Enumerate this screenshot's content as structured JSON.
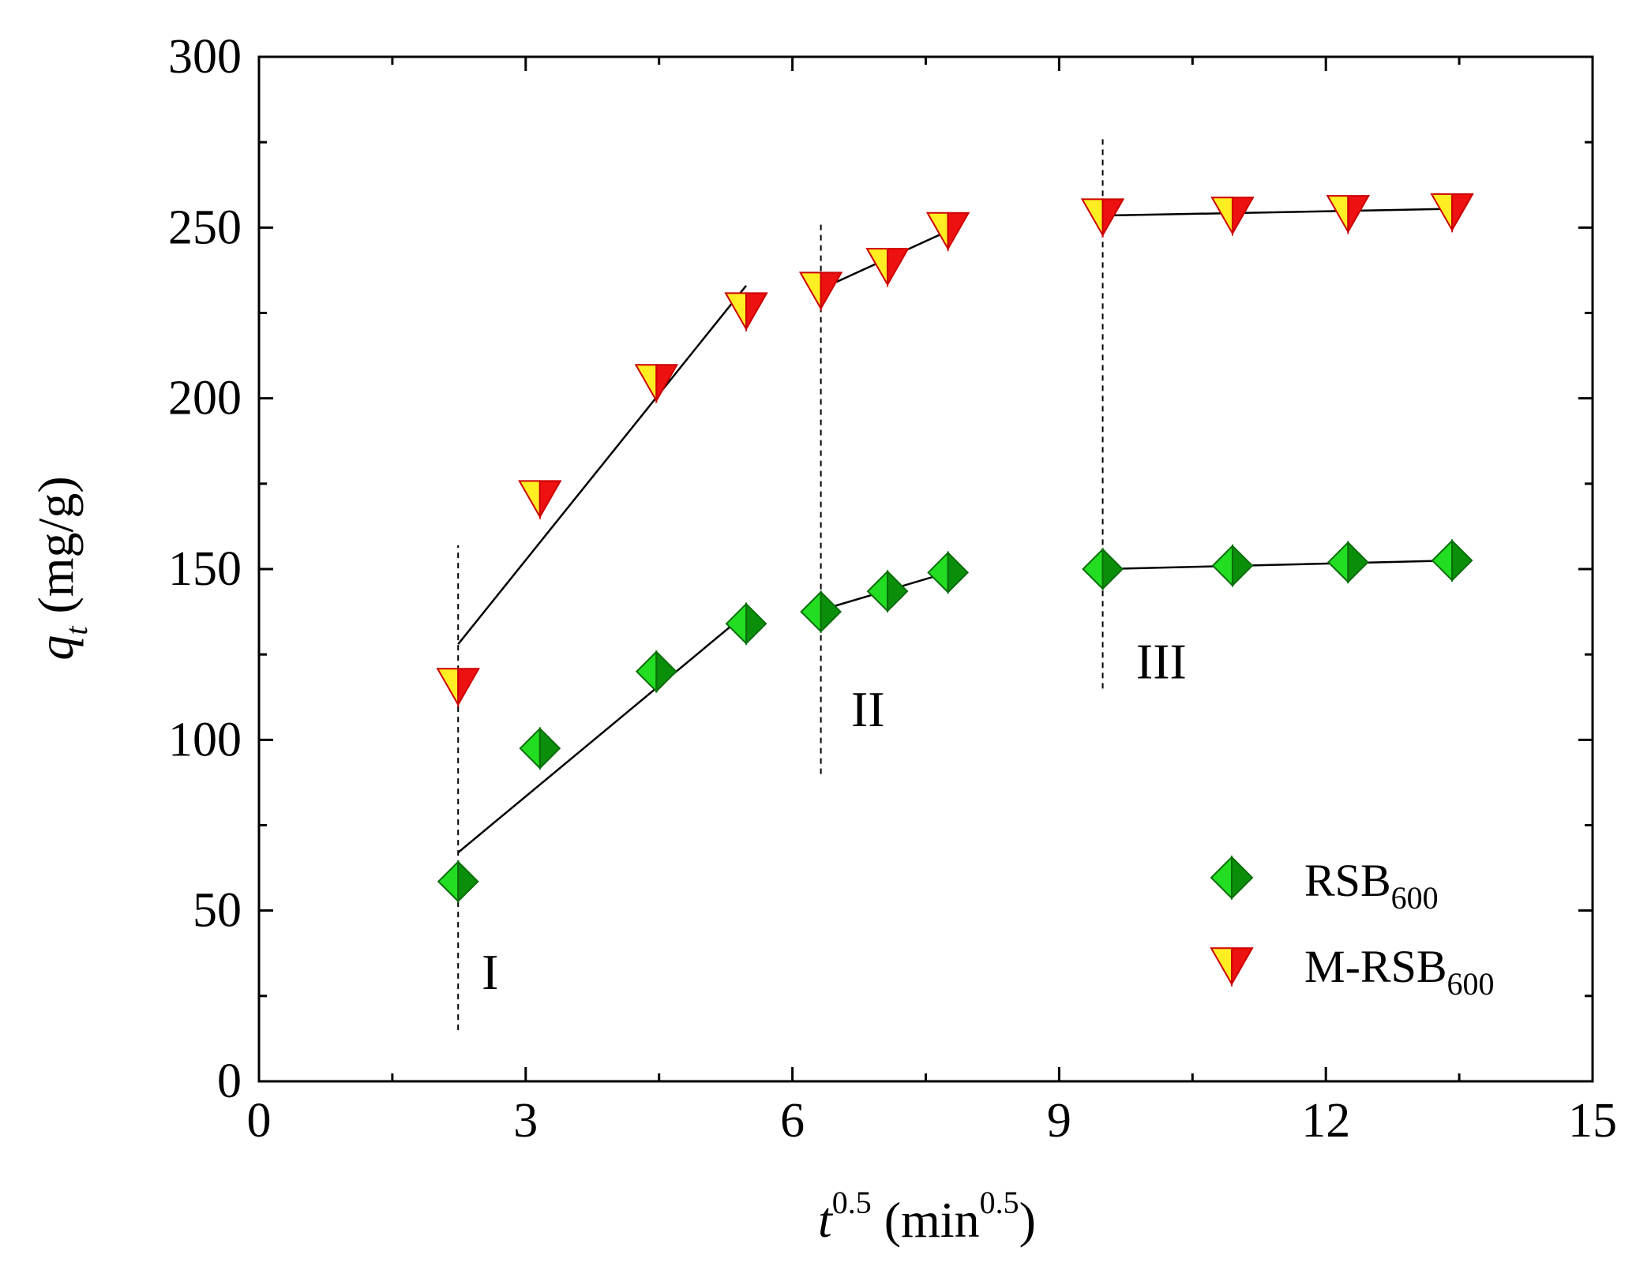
{
  "chart_data": {
    "type": "scatter",
    "xlabel": {
      "base": "t",
      "sup": "0.5",
      "unit_open": " (min",
      "unit_sup": "0.5",
      "unit_close": ")"
    },
    "ylabel": {
      "base": "q",
      "sub": "t",
      "unit": " (mg/g)"
    },
    "xlim": [
      0,
      15
    ],
    "ylim": [
      0,
      300
    ],
    "xticks": [
      0,
      3,
      6,
      9,
      12,
      15
    ],
    "yticks": [
      0,
      50,
      100,
      150,
      200,
      250,
      300
    ],
    "xtick_labels": [
      "0",
      "3",
      "6",
      "9",
      "12",
      "15"
    ],
    "ytick_labels": [
      "0",
      "50",
      "100",
      "150",
      "200",
      "250",
      "300"
    ],
    "series": [
      {
        "name": "RSB",
        "name_sub": "600",
        "marker": "diamond",
        "colors": {
          "light": "#22dd22",
          "dark": "#0b8f0b",
          "stroke": "#0a6e0a"
        },
        "x": [
          2.24,
          3.16,
          4.47,
          5.48,
          6.32,
          7.07,
          7.75,
          9.49,
          10.95,
          12.25,
          13.42
        ],
        "y": [
          58.5,
          97.5,
          120,
          134,
          137.5,
          143.5,
          149,
          150,
          151,
          152,
          152.5
        ]
      },
      {
        "name": "M-RSB",
        "name_sub": "600",
        "marker": "triangle-down",
        "colors": {
          "light": "#ffee22",
          "dark": "#ee1111",
          "stroke": "#cc0000"
        },
        "x": [
          2.24,
          3.16,
          4.47,
          5.48,
          6.32,
          7.07,
          7.75,
          9.49,
          10.95,
          12.25,
          13.42
        ],
        "y": [
          116,
          171,
          205,
          226,
          232,
          239,
          249.5,
          253.5,
          254,
          254.5,
          255
        ]
      }
    ],
    "fit_lines": [
      {
        "series": "RSB",
        "stage": "I",
        "x": [
          2.24,
          5.48
        ],
        "y": [
          67,
          137
        ]
      },
      {
        "series": "RSB",
        "stage": "II",
        "x": [
          6.32,
          7.75
        ],
        "y": [
          138,
          149
        ]
      },
      {
        "series": "RSB",
        "stage": "III",
        "x": [
          9.49,
          13.42
        ],
        "y": [
          150,
          152.5
        ]
      },
      {
        "series": "M-RSB",
        "stage": "I",
        "x": [
          2.24,
          5.48
        ],
        "y": [
          128,
          233
        ]
      },
      {
        "series": "M-RSB",
        "stage": "II",
        "x": [
          6.32,
          7.75
        ],
        "y": [
          232,
          249
        ]
      },
      {
        "series": "M-RSB",
        "stage": "III",
        "x": [
          9.49,
          13.42
        ],
        "y": [
          253.5,
          255.5
        ]
      }
    ],
    "stage_dividers": [
      {
        "x": 2.24,
        "y": [
          15,
          157
        ]
      },
      {
        "x": 6.32,
        "y": [
          90,
          251
        ]
      },
      {
        "x": 9.49,
        "y": [
          115,
          277
        ]
      }
    ],
    "stage_labels": [
      {
        "text": "I",
        "x": 2.6,
        "y": 27
      },
      {
        "text": "II",
        "x": 6.85,
        "y": 104
      },
      {
        "text": "III",
        "x": 10.15,
        "y": 118
      }
    ],
    "legend": {
      "position": "bottom-right"
    }
  }
}
